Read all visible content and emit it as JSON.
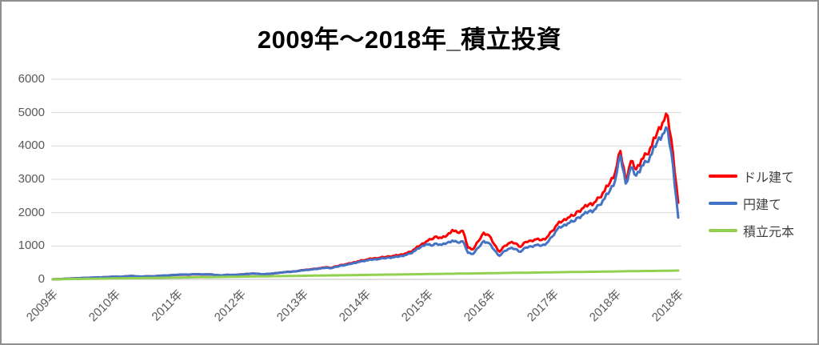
{
  "chart_data": {
    "type": "line",
    "title": "2009年～2018年_積立投資",
    "xlabel": "",
    "ylabel": "",
    "ylim": [
      0,
      6000
    ],
    "y_ticks": [
      0,
      1000,
      2000,
      3000,
      4000,
      5000,
      6000
    ],
    "x_tick_labels": [
      "2009年",
      "2010年",
      "2011年",
      "2012年",
      "2013年",
      "2014年",
      "2015年",
      "2016年",
      "2017年",
      "2018年",
      "2018年"
    ],
    "x_resolution": "monthly, Jan 2009 - Dec 2018",
    "grid": true,
    "legend_position": "right",
    "colors": {
      "dollar_line": "#FF0000",
      "yen_line": "#4472C4",
      "principal_line": "#92D050",
      "axis_text": "#595959",
      "legend_text": "#404040",
      "gridline": "#D9D9D9",
      "axis_line": "#BFBFBF",
      "chart_border": "#8F8F8F"
    },
    "series": [
      {
        "name": "ドル建て",
        "color": "#FF0000",
        "values": [
          3,
          8,
          14,
          22,
          30,
          34,
          42,
          48,
          56,
          58,
          66,
          75,
          80,
          76,
          92,
          100,
          86,
          80,
          92,
          88,
          102,
          112,
          116,
          130,
          136,
          142,
          140,
          152,
          150,
          146,
          150,
          128,
          116,
          134,
          132,
          136,
          150,
          164,
          172,
          168,
          152,
          164,
          176,
          195,
          215,
          225,
          240,
          262,
          286,
          300,
          320,
          338,
          362,
          348,
          392,
          435,
          458,
          498,
          538,
          572,
          600,
          628,
          642,
          664,
          688,
          706,
          732,
          772,
          820,
          920,
          1030,
          1130,
          1200,
          1285,
          1240,
          1320,
          1480,
          1405,
          1455,
          950,
          905,
          1150,
          1400,
          1320,
          1050,
          830,
          1005,
          1100,
          1080,
          975,
          1120,
          1160,
          1205,
          1180,
          1260,
          1450,
          1650,
          1750,
          1850,
          1905,
          2050,
          2150,
          2250,
          2305,
          2450,
          2650,
          2900,
          3200,
          3850,
          3000,
          3550,
          3300,
          3600,
          3750,
          4000,
          4400,
          4700,
          4900,
          3800,
          2300
        ]
      },
      {
        "name": "円建て",
        "color": "#4472C4",
        "values": [
          3,
          9,
          15,
          23,
          31,
          36,
          44,
          50,
          58,
          61,
          68,
          78,
          83,
          80,
          95,
          104,
          90,
          84,
          95,
          92,
          105,
          115,
          120,
          134,
          140,
          146,
          144,
          156,
          153,
          149,
          153,
          131,
          119,
          137,
          135,
          139,
          152,
          166,
          174,
          170,
          154,
          166,
          178,
          196,
          215,
          224,
          238,
          258,
          280,
          292,
          310,
          326,
          348,
          336,
          376,
          418,
          440,
          478,
          515,
          548,
          572,
          598,
          610,
          630,
          652,
          668,
          692,
          728,
          772,
          865,
          965,
          1060,
          1010,
          1075,
          1035,
          1095,
          1165,
          1110,
          1140,
          795,
          765,
          955,
          1150,
          1085,
          880,
          705,
          855,
          930,
          910,
          825,
          950,
          990,
          1030,
          1010,
          1090,
          1280,
          1505,
          1590,
          1680,
          1730,
          1860,
          1950,
          2040,
          2085,
          2230,
          2420,
          2660,
          2960,
          3720,
          2870,
          3360,
          3110,
          3400,
          3520,
          3760,
          4120,
          4350,
          4480,
          3420,
          1850
        ]
      },
      {
        "name": "積立元本",
        "color": "#92D050",
        "values": [
          2,
          4,
          7,
          9,
          11,
          13,
          15,
          18,
          20,
          22,
          24,
          26,
          29,
          31,
          33,
          35,
          37,
          40,
          42,
          44,
          46,
          48,
          51,
          53,
          55,
          57,
          59,
          62,
          64,
          66,
          68,
          70,
          73,
          75,
          77,
          79,
          81,
          84,
          86,
          88,
          90,
          92,
          95,
          97,
          99,
          101,
          103,
          106,
          108,
          110,
          112,
          114,
          117,
          119,
          121,
          123,
          125,
          128,
          130,
          132,
          134,
          136,
          139,
          141,
          143,
          145,
          147,
          150,
          152,
          154,
          156,
          158,
          161,
          163,
          165,
          167,
          169,
          172,
          174,
          176,
          178,
          180,
          183,
          185,
          187,
          189,
          191,
          194,
          196,
          198,
          200,
          202,
          205,
          207,
          209,
          211,
          213,
          216,
          218,
          220,
          222,
          224,
          227,
          229,
          231,
          233,
          235,
          238,
          240,
          242,
          244,
          246,
          249,
          251,
          253,
          255,
          257,
          260,
          262,
          264
        ]
      }
    ]
  }
}
